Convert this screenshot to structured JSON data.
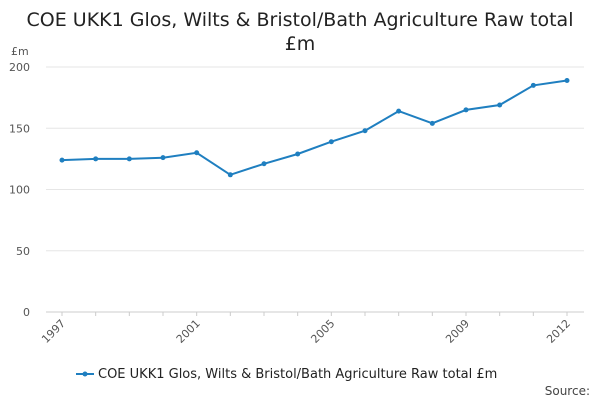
{
  "chart_data": {
    "type": "line",
    "title_line1": "COE UKK1 Glos, Wilts & Bristol/Bath Agriculture Raw total",
    "title_line2": "£m",
    "ylabel": "£m",
    "x": [
      1997,
      1998,
      1999,
      2000,
      2001,
      2002,
      2003,
      2004,
      2005,
      2006,
      2007,
      2008,
      2009,
      2010,
      2011,
      2012
    ],
    "x_tick_labels": [
      "1997",
      "2001",
      "2005",
      "2009",
      "2012"
    ],
    "y_tick_labels": [
      "0",
      "50",
      "100",
      "150",
      "200"
    ],
    "ylim": [
      0,
      200
    ],
    "series": [
      {
        "name": "COE UKK1 Glos, Wilts & Bristol/Bath Agriculture Raw total £m",
        "values": [
          124,
          125,
          125,
          126,
          130,
          112,
          121,
          129,
          139,
          148,
          164,
          154,
          165,
          169,
          185,
          189
        ],
        "color": "#1f7fc0"
      }
    ],
    "grid": true,
    "legend_position": "bottom",
    "source_label": "Source:"
  }
}
